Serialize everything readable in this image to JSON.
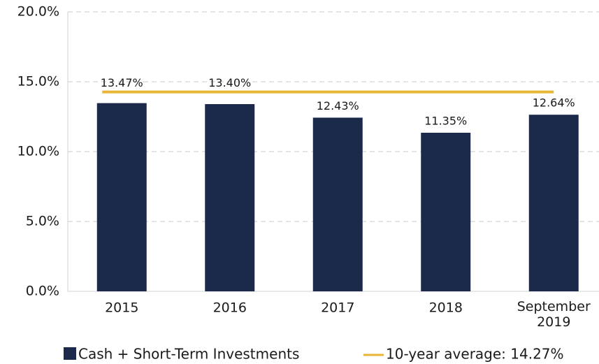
{
  "chart_data": {
    "type": "bar",
    "categories": [
      "2015",
      "2016",
      "2017",
      "2018",
      "September 2019"
    ],
    "series": [
      {
        "name": "Cash + Short-Term Investments",
        "type": "bar",
        "color": "#1b2a4a",
        "values": [
          13.47,
          13.4,
          12.43,
          11.35,
          12.64
        ],
        "value_labels": [
          "13.47%",
          "13.40%",
          "12.43%",
          "11.35%",
          "12.64%"
        ]
      },
      {
        "name": "10-year average: 14.27%",
        "type": "line",
        "color": "#e8b637",
        "values": [
          14.27,
          14.27,
          14.27,
          14.27,
          14.27
        ]
      }
    ],
    "ylim": [
      0,
      20
    ],
    "yticks": [
      {
        "value": 0,
        "label": "0.0%"
      },
      {
        "value": 5,
        "label": "5.0%"
      },
      {
        "value": 10,
        "label": "10.0%"
      },
      {
        "value": 15,
        "label": "15.0%"
      },
      {
        "value": 20,
        "label": "20.0%"
      }
    ],
    "grid": true
  }
}
